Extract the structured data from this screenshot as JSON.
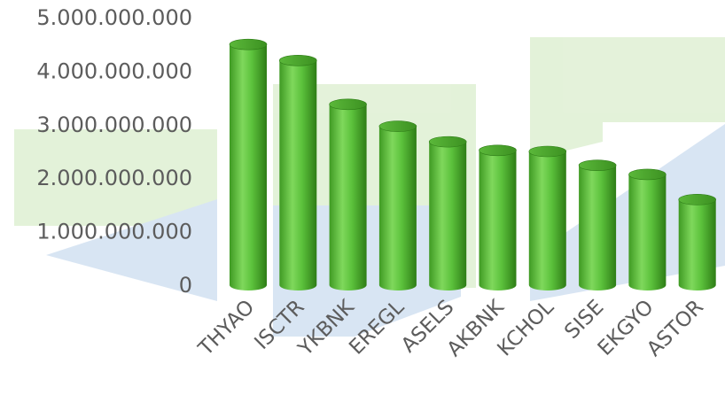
{
  "chart_data": {
    "type": "bar",
    "style": "3d-cylinder",
    "categories": [
      "THYAO",
      "ISCTR",
      "YKBNK",
      "EREGL",
      "ASELS",
      "AKBNK",
      "KCHOL",
      "SISE",
      "EKGYO",
      "ASTOR"
    ],
    "values": [
      4500000000,
      4200000000,
      3380000000,
      2970000000,
      2680000000,
      2520000000,
      2500000000,
      2240000000,
      2070000000,
      1600000000
    ],
    "ylim": [
      0,
      5000000000
    ],
    "yticks": [
      0,
      1000000000,
      2000000000,
      3000000000,
      4000000000,
      5000000000
    ],
    "ytick_labels": [
      "0",
      "1.000.000.000",
      "2.000.000.000",
      "3.000.000.000",
      "4.000.000.000",
      "5.000.000.000"
    ],
    "title": "",
    "xlabel": "",
    "ylabel": "",
    "grid": false,
    "legend": "none",
    "bar_color": "#5cc23c",
    "watermark_colors": [
      "#c9e6b6",
      "#b6cde8"
    ]
  }
}
